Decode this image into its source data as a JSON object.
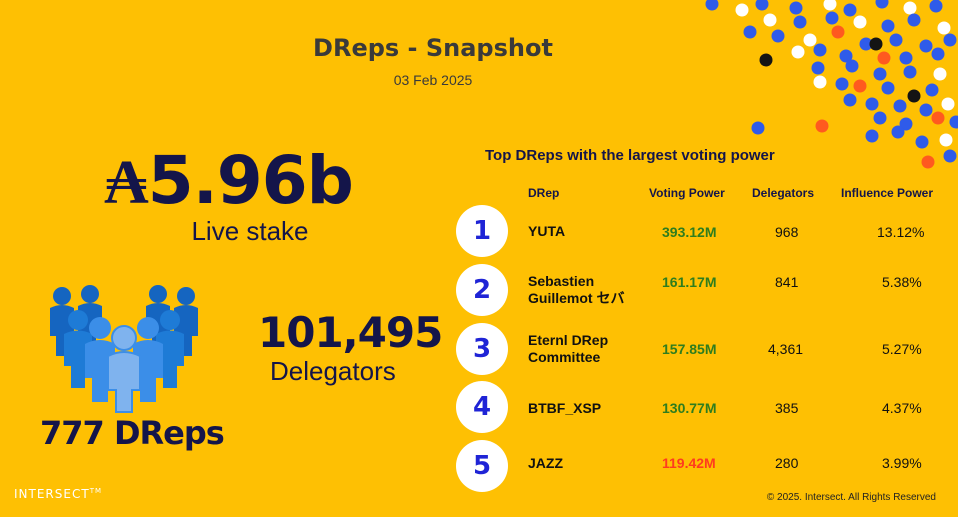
{
  "header": {
    "title": "DReps - Snapshot",
    "date": "03 Feb 2025"
  },
  "stats": {
    "stake_symbol": "₳",
    "stake_value": "5.96b",
    "stake_label": "Live stake",
    "delegators_value": "101,495",
    "delegators_label": "Delegators",
    "dreps_count": "777 DReps"
  },
  "table": {
    "title": "Top DReps with the largest voting power",
    "columns": [
      "DRep",
      "Voting Power",
      "Delegators",
      "Influence Power"
    ],
    "rows": [
      {
        "rank": "1",
        "name": "YUTA",
        "voting_power": "393.12M",
        "delegators": "968",
        "influence": "13.12%"
      },
      {
        "rank": "2",
        "name": "Sebastien Guillemot セバ",
        "voting_power": "161.17M",
        "delegators": "841",
        "influence": "5.38%"
      },
      {
        "rank": "3",
        "name": "Eternl DRep Committee",
        "voting_power": "157.85M",
        "delegators": "4,361",
        "influence": "5.27%"
      },
      {
        "rank": "4",
        "name": "BTBF_XSP",
        "voting_power": "130.77M",
        "delegators": "385",
        "influence": "4.37%"
      },
      {
        "rank": "5",
        "name": "JAZZ",
        "voting_power": "119.42M",
        "delegators": "280",
        "influence": "3.99%"
      }
    ]
  },
  "footer": {
    "logo": "INTERSECT",
    "copyright": "© 2025. Intersect. All Rights Reserved"
  },
  "colors": {
    "background": "#FEC003",
    "navy": "#14154a",
    "rank_blue": "#1f24d6",
    "vp_green": "#2e7d1e",
    "vp_red": "#ff3b1f",
    "dot_blue": "#2f5bea",
    "dot_orange": "#ff5a1f"
  }
}
